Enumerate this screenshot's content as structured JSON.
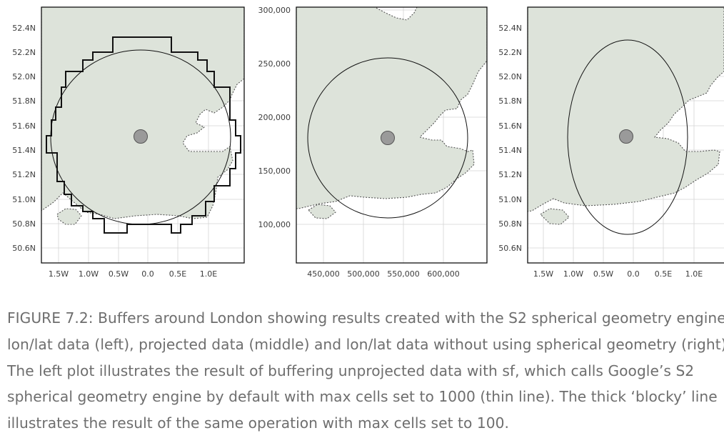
{
  "chart_data": [
    {
      "type": "map",
      "x_ticks": [
        "1.5W",
        "1.0W",
        "0.5W",
        "0.0",
        "0.5E",
        "1.0E"
      ],
      "y_ticks": [
        "52.4N",
        "52.2N",
        "52.0N",
        "51.8N",
        "51.6N",
        "51.4N",
        "51.2N",
        "51.0N",
        "50.8N",
        "50.6N"
      ],
      "centre": {
        "lon": -0.1,
        "lat": 51.5
      },
      "grid": true
    },
    {
      "type": "map",
      "x_ticks": [
        "450,000",
        "500,000",
        "550,000",
        "600,000"
      ],
      "y_ticks": [
        "300,000",
        "250,000",
        "200,000",
        "150,000",
        "100,000"
      ],
      "centre": {
        "x": 530000,
        "y": 180000
      },
      "grid": true
    },
    {
      "type": "map",
      "x_ticks": [
        "1.5W",
        "1.0W",
        "0.5W",
        "0.0",
        "0.5E",
        "1.0E"
      ],
      "y_ticks": [
        "52.4N",
        "52.2N",
        "52.0N",
        "51.8N",
        "51.6N",
        "51.4N",
        "51.2N",
        "51.0N",
        "50.8N",
        "50.6N"
      ],
      "centre": {
        "lon": -0.1,
        "lat": 51.5
      },
      "grid": true
    }
  ],
  "colors": {
    "land": "#dde3da",
    "coast": "#555555",
    "buffer": "#111111",
    "point": "#9a9a9a",
    "grid": "#d4d4d4",
    "caption": "#6e6e6e"
  },
  "caption": [
    "FIGURE 7.2: Buffers around London showing results created with the S2 spherical geometry engine on",
    "lon/lat data (left), projected data (middle) and lon/lat data without using spherical geometry (right).",
    "The left plot illustrates the result of buffering unprojected data with sf, which calls Google’s S2",
    "spherical geometry engine by default with max cells set to 1000 (thin line). The thick ‘blocky’ line",
    "illustrates the result of the same operation with max cells set to 100."
  ]
}
